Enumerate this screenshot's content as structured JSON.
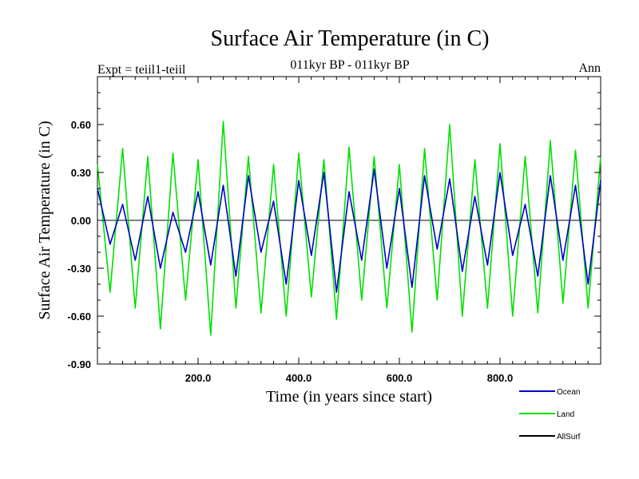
{
  "chart_data": {
    "type": "line",
    "title": "Surface Air Temperature (in C)",
    "subtitle": "011kyr BP - 011kyr BP",
    "left_label": "Expt = teiil1-teiil",
    "right_label": "Ann",
    "xlabel": "Time (in years since start)",
    "ylabel": "Surface Air Temperature (in C)",
    "xlim": [
      0,
      1000
    ],
    "ylim": [
      -0.9,
      0.9
    ],
    "x_ticks": [
      200,
      400,
      600,
      800
    ],
    "x_tick_labels": [
      "200.0",
      "400.0",
      "600.0",
      "800.0"
    ],
    "y_ticks": [
      -0.9,
      -0.6,
      -0.3,
      0.0,
      0.3,
      0.6
    ],
    "y_tick_labels": [
      "-0.90",
      "-0.60",
      "-0.30",
      "0.00",
      "0.30",
      "0.60"
    ],
    "grid": false,
    "legend_position": "bottom-right",
    "series": [
      {
        "name": "Ocean",
        "color": "#0000cc",
        "x": [
          0,
          25,
          50,
          75,
          100,
          125,
          150,
          175,
          200,
          225,
          250,
          275,
          300,
          325,
          350,
          375,
          400,
          425,
          450,
          475,
          500,
          525,
          550,
          575,
          600,
          625,
          650,
          675,
          700,
          725,
          750,
          775,
          800,
          825,
          850,
          875,
          900,
          925,
          950,
          975,
          1000
        ],
        "values": [
          0.2,
          -0.15,
          0.1,
          -0.25,
          0.15,
          -0.3,
          0.05,
          -0.2,
          0.18,
          -0.28,
          0.22,
          -0.35,
          0.28,
          -0.2,
          0.12,
          -0.4,
          0.25,
          -0.22,
          0.3,
          -0.45,
          0.18,
          -0.25,
          0.32,
          -0.3,
          0.2,
          -0.42,
          0.28,
          -0.18,
          0.26,
          -0.32,
          0.15,
          -0.28,
          0.3,
          -0.22,
          0.1,
          -0.35,
          0.28,
          -0.25,
          0.22,
          -0.4,
          0.25
        ]
      },
      {
        "name": "Land",
        "color": "#00e000",
        "x": [
          0,
          25,
          50,
          75,
          100,
          125,
          150,
          175,
          200,
          225,
          250,
          275,
          300,
          325,
          350,
          375,
          400,
          425,
          450,
          475,
          500,
          525,
          550,
          575,
          600,
          625,
          650,
          675,
          700,
          725,
          750,
          775,
          800,
          825,
          850,
          875,
          900,
          925,
          950,
          975,
          1000
        ],
        "values": [
          0.35,
          -0.45,
          0.45,
          -0.55,
          0.4,
          -0.68,
          0.42,
          -0.5,
          0.38,
          -0.72,
          0.62,
          -0.55,
          0.4,
          -0.58,
          0.35,
          -0.6,
          0.42,
          -0.48,
          0.38,
          -0.62,
          0.46,
          -0.5,
          0.4,
          -0.55,
          0.35,
          -0.7,
          0.45,
          -0.5,
          0.6,
          -0.6,
          0.38,
          -0.55,
          0.48,
          -0.6,
          0.4,
          -0.58,
          0.5,
          -0.52,
          0.44,
          -0.55,
          0.4
        ]
      },
      {
        "name": "AllSurf",
        "color": "#000000",
        "x": [],
        "values": []
      }
    ]
  }
}
